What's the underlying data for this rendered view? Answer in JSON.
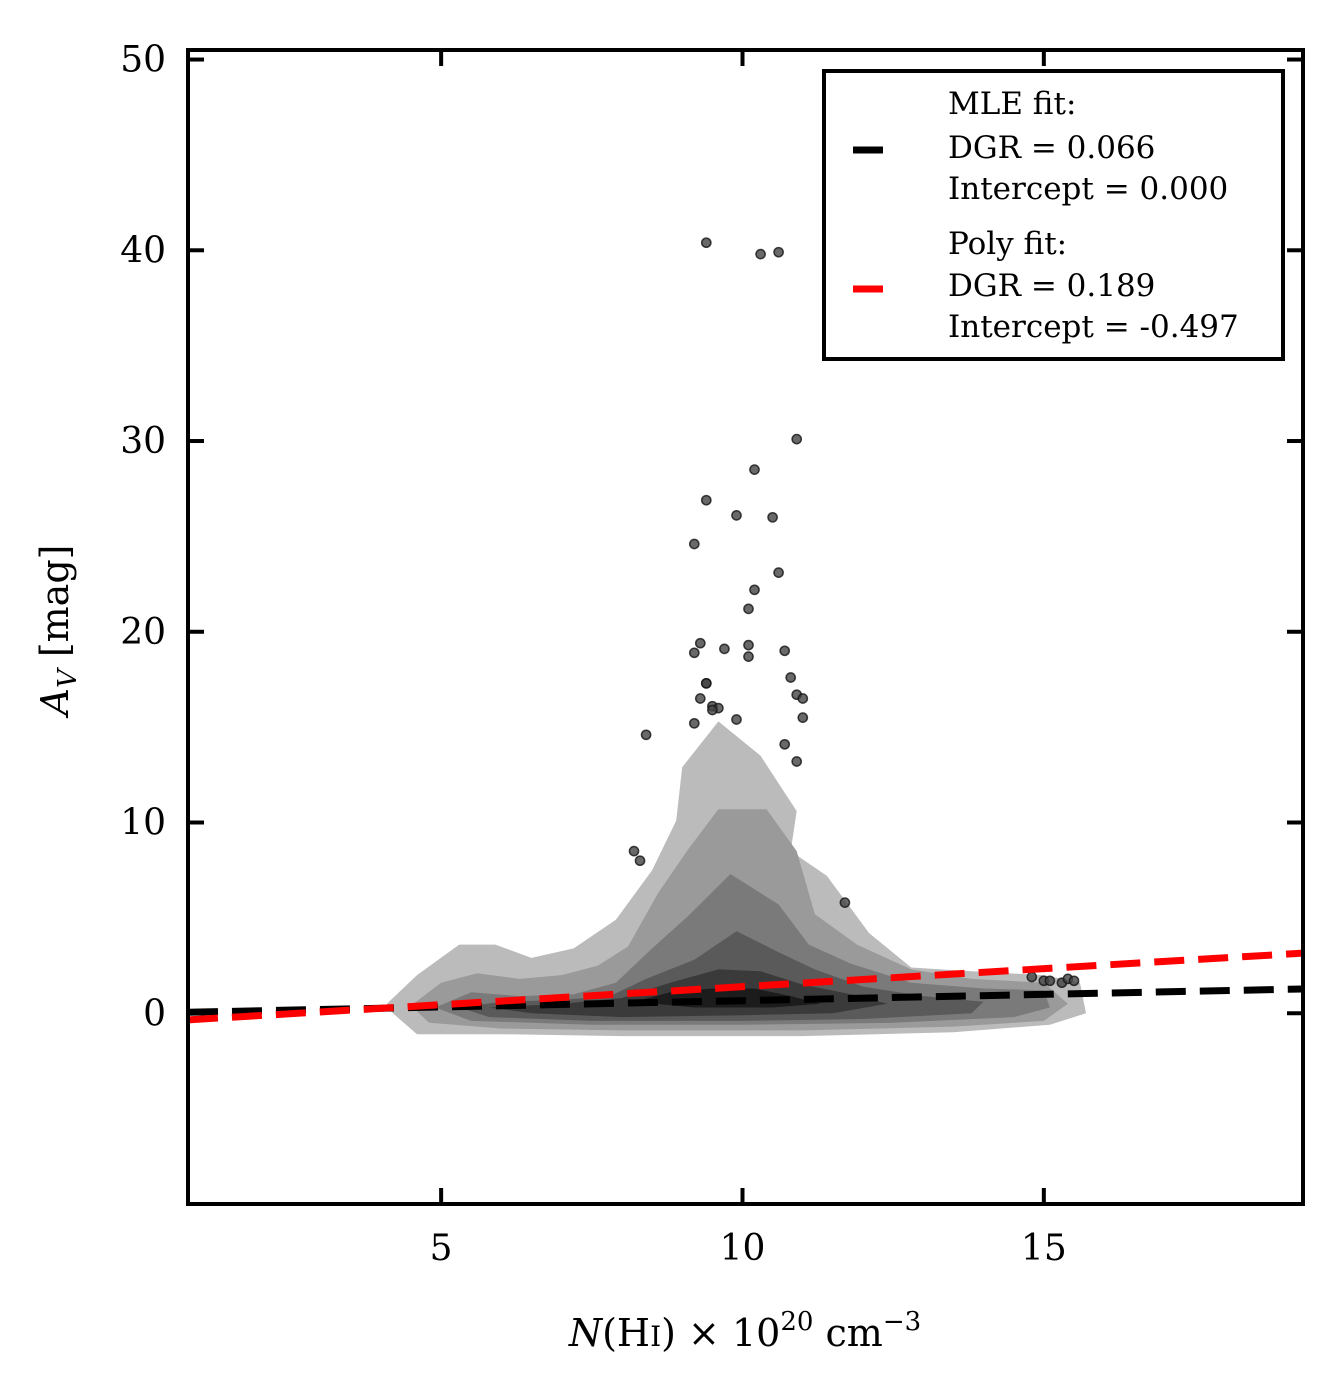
{
  "chart_data": {
    "type": "scatter",
    "title": "",
    "xlabel": {
      "pre": "N",
      "paren_open": "(H",
      "ion": "I",
      "paren_close": ")",
      "times": " × 10",
      "exp": "20",
      "unit": " cm",
      "unit_exp": "−3"
    },
    "ylabel": {
      "main": "A",
      "sub": "V",
      "unit": " [mag]"
    },
    "xlim": [
      0.8,
      19.3
    ],
    "ylim": [
      -10,
      50.5
    ],
    "xticks": [
      5,
      10,
      15
    ],
    "yticks": [
      0,
      10,
      20,
      30,
      40,
      50
    ],
    "grid": false,
    "legend_position": "top-right",
    "legend": [
      {
        "lines": [
          "MLE fit:",
          "DGR = 0.066",
          "Intercept = 0.000"
        ],
        "color": "#000000"
      },
      {
        "lines": [
          "Poly fit:",
          "DGR = 0.189",
          "Intercept = -0.497"
        ],
        "color": "#ff0000"
      }
    ],
    "fits": [
      {
        "slope": 0.066,
        "intercept": 0.0,
        "color": "#000000"
      },
      {
        "slope": 0.189,
        "intercept": -0.497,
        "color": "#ff0000"
      }
    ],
    "contours": [
      {
        "color": "#bbbbbb",
        "points": [
          [
            4.1,
            0.5
          ],
          [
            4.6,
            2.0
          ],
          [
            5.3,
            3.6
          ],
          [
            5.9,
            3.6
          ],
          [
            6.5,
            2.9
          ],
          [
            7.2,
            3.4
          ],
          [
            7.9,
            4.9
          ],
          [
            8.5,
            7.5
          ],
          [
            8.9,
            10.1
          ],
          [
            9.0,
            12.9
          ],
          [
            9.6,
            15.3
          ],
          [
            10.3,
            13.5
          ],
          [
            10.9,
            10.6
          ],
          [
            10.8,
            8.5
          ],
          [
            11.4,
            7.2
          ],
          [
            12.1,
            4.2
          ],
          [
            12.8,
            2.4
          ],
          [
            13.8,
            2.2
          ],
          [
            15.0,
            2.0
          ],
          [
            15.6,
            1.6
          ],
          [
            15.7,
            0.0
          ],
          [
            15.1,
            -0.6
          ],
          [
            13.5,
            -1.0
          ],
          [
            11.0,
            -1.2
          ],
          [
            8.0,
            -1.2
          ],
          [
            6.0,
            -1.1
          ],
          [
            4.6,
            -1.1
          ],
          [
            4.2,
            0.0
          ]
        ]
      },
      {
        "color": "#9a9a9a",
        "points": [
          [
            4.5,
            0.4
          ],
          [
            5.0,
            1.6
          ],
          [
            5.6,
            2.1
          ],
          [
            6.3,
            1.8
          ],
          [
            7.0,
            2.0
          ],
          [
            7.6,
            2.5
          ],
          [
            8.1,
            3.5
          ],
          [
            8.6,
            6.3
          ],
          [
            9.1,
            8.6
          ],
          [
            9.6,
            10.7
          ],
          [
            10.4,
            10.7
          ],
          [
            10.9,
            8.5
          ],
          [
            11.2,
            5.2
          ],
          [
            11.9,
            3.6
          ],
          [
            12.8,
            2.3
          ],
          [
            13.8,
            1.8
          ],
          [
            15.0,
            1.6
          ],
          [
            15.4,
            0.5
          ],
          [
            15.0,
            -0.4
          ],
          [
            13.5,
            -0.7
          ],
          [
            11.0,
            -0.9
          ],
          [
            8.0,
            -0.9
          ],
          [
            6.0,
            -0.8
          ],
          [
            4.8,
            -0.5
          ]
        ]
      },
      {
        "color": "#7a7a7a",
        "points": [
          [
            4.9,
            0.3
          ],
          [
            5.5,
            1.1
          ],
          [
            6.3,
            0.9
          ],
          [
            7.2,
            1.0
          ],
          [
            7.9,
            1.6
          ],
          [
            8.5,
            3.4
          ],
          [
            9.1,
            5.1
          ],
          [
            9.8,
            7.3
          ],
          [
            10.6,
            5.7
          ],
          [
            11.1,
            3.6
          ],
          [
            11.8,
            2.6
          ],
          [
            12.8,
            1.6
          ],
          [
            14.0,
            1.3
          ],
          [
            15.0,
            1.2
          ],
          [
            15.1,
            0.3
          ],
          [
            14.5,
            -0.2
          ],
          [
            12.5,
            -0.5
          ],
          [
            10.0,
            -0.6
          ],
          [
            7.5,
            -0.6
          ],
          [
            5.5,
            -0.4
          ]
        ]
      },
      {
        "color": "#5a5a5a",
        "points": [
          [
            5.3,
            0.3
          ],
          [
            6.0,
            0.6
          ],
          [
            7.0,
            0.7
          ],
          [
            7.8,
            0.9
          ],
          [
            8.4,
            1.8
          ],
          [
            9.2,
            2.8
          ],
          [
            9.9,
            4.3
          ],
          [
            10.6,
            3.2
          ],
          [
            11.2,
            2.3
          ],
          [
            12.0,
            1.4
          ],
          [
            13.0,
            0.9
          ],
          [
            14.0,
            0.6
          ],
          [
            13.8,
            0.0
          ],
          [
            12.0,
            -0.3
          ],
          [
            10.0,
            -0.4
          ],
          [
            7.5,
            -0.4
          ],
          [
            5.8,
            -0.2
          ]
        ]
      },
      {
        "color": "#3a3a3a",
        "points": [
          [
            5.8,
            0.3
          ],
          [
            7.0,
            0.5
          ],
          [
            8.0,
            0.8
          ],
          [
            8.8,
            1.6
          ],
          [
            9.6,
            2.3
          ],
          [
            10.3,
            2.2
          ],
          [
            11.0,
            1.5
          ],
          [
            11.8,
            1.0
          ],
          [
            12.4,
            0.5
          ],
          [
            11.5,
            0.0
          ],
          [
            10.0,
            -0.1
          ],
          [
            8.0,
            -0.2
          ],
          [
            6.5,
            0.0
          ]
        ]
      },
      {
        "color": "#1c1c1c",
        "points": [
          [
            8.2,
            0.6
          ],
          [
            8.8,
            1.1
          ],
          [
            9.5,
            1.3
          ],
          [
            10.2,
            1.3
          ],
          [
            10.8,
            0.9
          ],
          [
            11.3,
            0.5
          ],
          [
            10.5,
            0.3
          ],
          [
            9.2,
            0.3
          ]
        ]
      }
    ],
    "points": [
      [
        9.4,
        40.4
      ],
      [
        10.3,
        39.8
      ],
      [
        10.6,
        39.9
      ],
      [
        10.9,
        30.1
      ],
      [
        10.2,
        28.5
      ],
      [
        9.4,
        26.9
      ],
      [
        9.9,
        26.1
      ],
      [
        10.5,
        26.0
      ],
      [
        9.2,
        24.6
      ],
      [
        10.6,
        23.1
      ],
      [
        10.2,
        22.2
      ],
      [
        10.1,
        21.2
      ],
      [
        9.3,
        19.4
      ],
      [
        10.1,
        19.3
      ],
      [
        9.7,
        19.1
      ],
      [
        10.7,
        19.0
      ],
      [
        9.2,
        18.9
      ],
      [
        10.1,
        18.7
      ],
      [
        10.8,
        17.6
      ],
      [
        9.4,
        17.3
      ],
      [
        9.4,
        17.3
      ],
      [
        10.9,
        16.7
      ],
      [
        11.0,
        16.5
      ],
      [
        9.3,
        16.5
      ],
      [
        9.5,
        16.1
      ],
      [
        9.6,
        16.0
      ],
      [
        9.5,
        15.9
      ],
      [
        11.0,
        15.5
      ],
      [
        9.9,
        15.4
      ],
      [
        9.2,
        15.2
      ],
      [
        8.4,
        14.6
      ],
      [
        10.7,
        14.1
      ],
      [
        10.9,
        13.2
      ],
      [
        8.2,
        8.5
      ],
      [
        8.3,
        8.0
      ],
      [
        11.7,
        5.8
      ],
      [
        14.8,
        1.9
      ],
      [
        15.0,
        1.7
      ],
      [
        15.1,
        1.7
      ],
      [
        15.3,
        1.6
      ],
      [
        15.4,
        1.8
      ],
      [
        15.5,
        1.7
      ]
    ],
    "colors": {
      "points": "#444444",
      "contour_line": "none",
      "axis": "#000000"
    }
  }
}
